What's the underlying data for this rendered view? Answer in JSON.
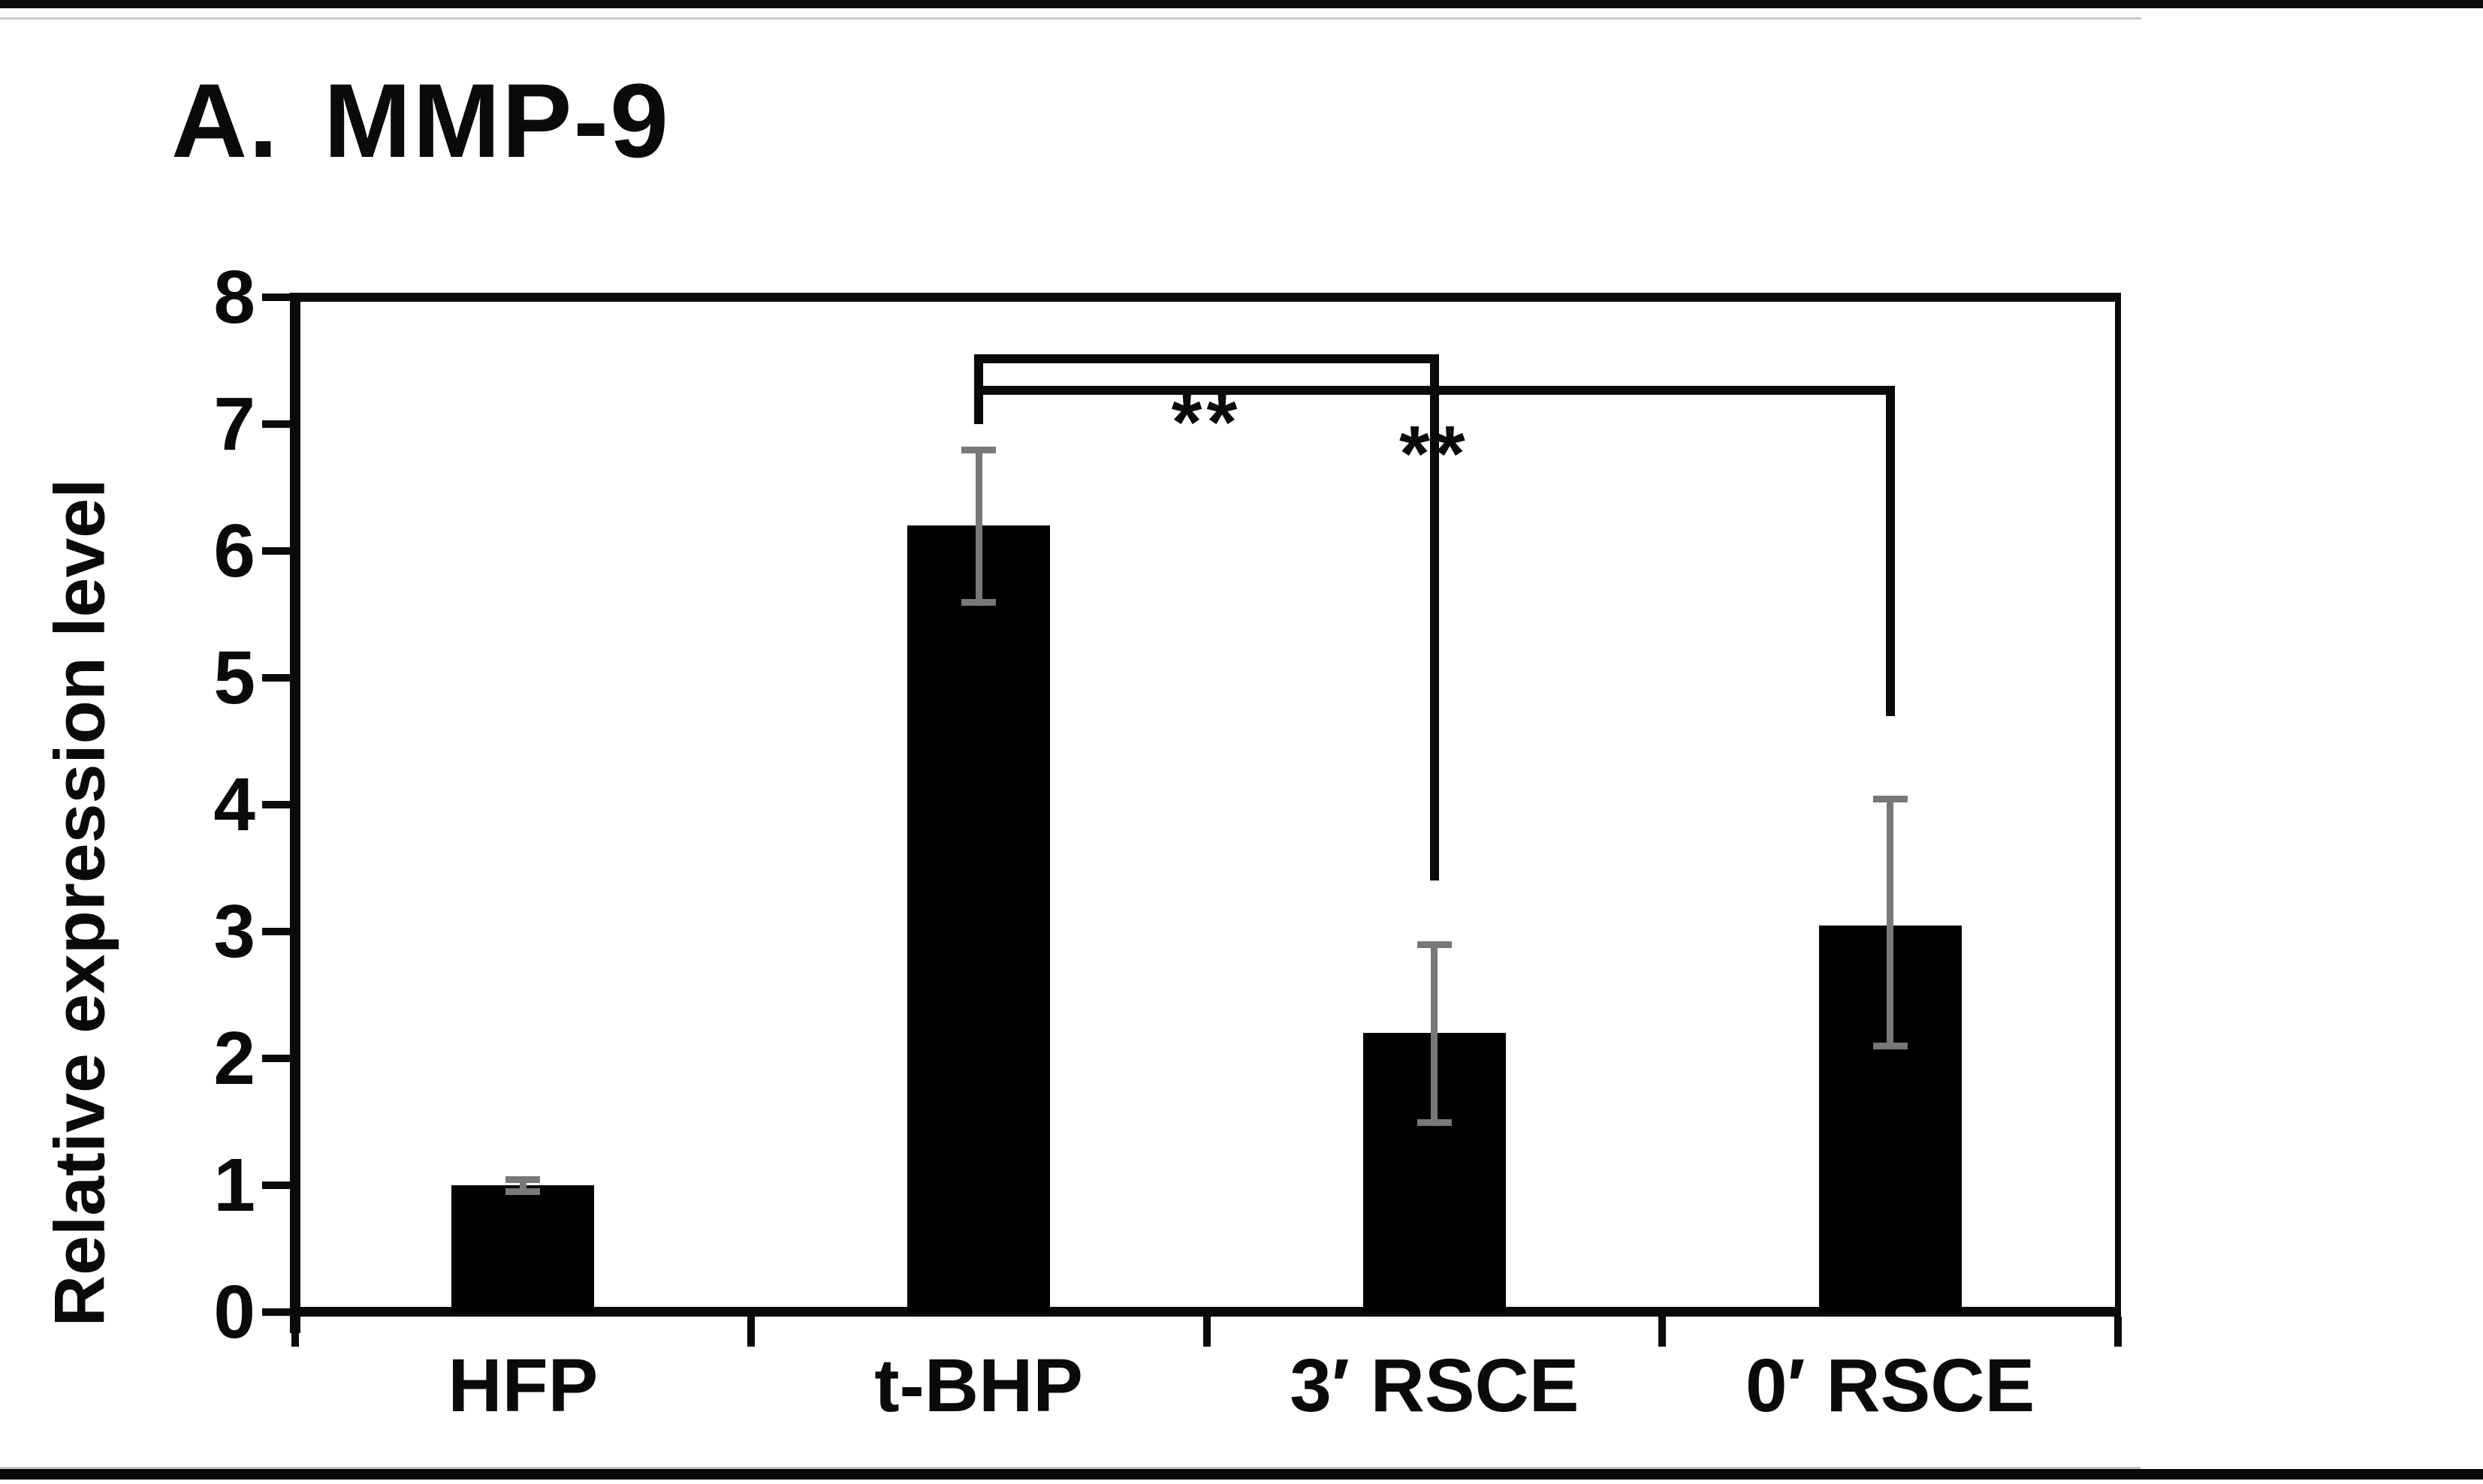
{
  "figure": {
    "title": "A. MMP-9",
    "top_rule_color": "#0a0a0a",
    "bottom_rule_color": "#0a0a0a",
    "background": "#ffffff"
  },
  "chart_data": {
    "type": "bar",
    "title": "A. MMP-9",
    "xlabel": "",
    "ylabel": "Relative expression level",
    "ylim": [
      0,
      8
    ],
    "yticks": [
      0,
      1,
      2,
      3,
      4,
      5,
      6,
      7,
      8
    ],
    "categories": [
      "HFP",
      "t-BHP",
      "3′ RSCE",
      "0′ RSCE"
    ],
    "values": [
      1.0,
      6.2,
      2.2,
      3.05
    ],
    "errors_plus": [
      0.05,
      0.6,
      0.7,
      1.0
    ],
    "errors_minus": [
      0.05,
      0.6,
      0.7,
      0.95
    ],
    "bar_color": "#000000",
    "error_bar_color": "#787878",
    "axis_color": "#0a0a0a",
    "grid": false,
    "legend": null,
    "significance_brackets": [
      {
        "from": "t-BHP",
        "to": "3′ RSCE",
        "label": "**",
        "bar_y": 7.55,
        "from_drop_y": 7.0,
        "to_drop_y": 3.4,
        "label_y": 7.1
      },
      {
        "from": "t-BHP",
        "to": "0′ RSCE",
        "label": "**",
        "bar_y": 7.3,
        "from_drop_y": 7.0,
        "to_drop_y": 4.7,
        "label_y": 6.85
      }
    ]
  }
}
